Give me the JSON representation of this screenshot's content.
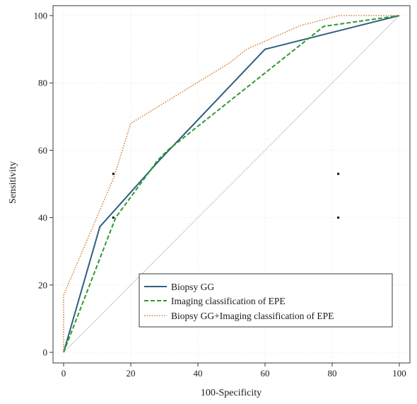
{
  "chart_data": {
    "type": "line",
    "title": "",
    "xlabel": "100-Specificity",
    "ylabel": "Sensitivity",
    "xlim": [
      0,
      100
    ],
    "ylim": [
      0,
      100
    ],
    "xticks": [
      0,
      20,
      40,
      60,
      80,
      100
    ],
    "yticks": [
      0,
      20,
      40,
      60,
      80,
      100
    ],
    "grid": true,
    "legend_position": "bottom-right",
    "reference_line": {
      "x": [
        0,
        100
      ],
      "y": [
        0,
        100
      ],
      "color": "#c8c8c8"
    },
    "series": [
      {
        "name": "Biopsy GG",
        "style": "solid",
        "color": "#2f5f80",
        "x": [
          0,
          10.8,
          28.5,
          60,
          100
        ],
        "y": [
          0,
          37.3,
          57,
          90,
          100
        ]
      },
      {
        "name": "Imaging classification of EPE",
        "style": "dashed",
        "color": "#2e9a2e",
        "x": [
          0,
          15.5,
          28,
          31,
          77.5,
          100
        ],
        "y": [
          0,
          40,
          57,
          60,
          96.8,
          100
        ]
      },
      {
        "name": "Biopsy GG+Imaging classification of EPE",
        "style": "dotted",
        "color": "#d3843a",
        "x": [
          0,
          0,
          15,
          20,
          49.5,
          54.5,
          70.5,
          82,
          100
        ],
        "y": [
          0,
          17,
          52,
          68,
          86,
          90,
          97,
          100,
          100
        ]
      }
    ],
    "markers": [
      {
        "x": 14.8,
        "y": 53
      },
      {
        "x": 14.8,
        "y": 40
      },
      {
        "x": 81.8,
        "y": 53
      },
      {
        "x": 81.8,
        "y": 40
      }
    ]
  }
}
